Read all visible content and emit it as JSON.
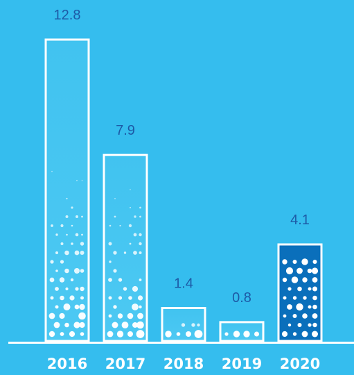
{
  "chart_data": {
    "type": "bar",
    "categories": [
      "2016",
      "2017",
      "2018",
      "2019",
      "2020"
    ],
    "values": [
      12.8,
      7.9,
      1.4,
      0.8,
      4.1
    ],
    "value_labels": [
      "12.8",
      "7.9",
      "1.4",
      "0.8",
      "4.1"
    ],
    "title": "",
    "xlabel": "",
    "ylabel": "",
    "ylim": [
      0,
      12.8
    ],
    "grid": false,
    "legend": "none",
    "highlight_category": "2020",
    "colors": {
      "background": "#35bdee",
      "bar_fill": "#41c3f0",
      "bar_outline": "#ffffff",
      "highlight_fill": "#0a6fbb",
      "value_text": "#1d5aa6",
      "tick_text": "#ffffff",
      "axis": "#ffffff",
      "dots": "#ffffff"
    }
  }
}
